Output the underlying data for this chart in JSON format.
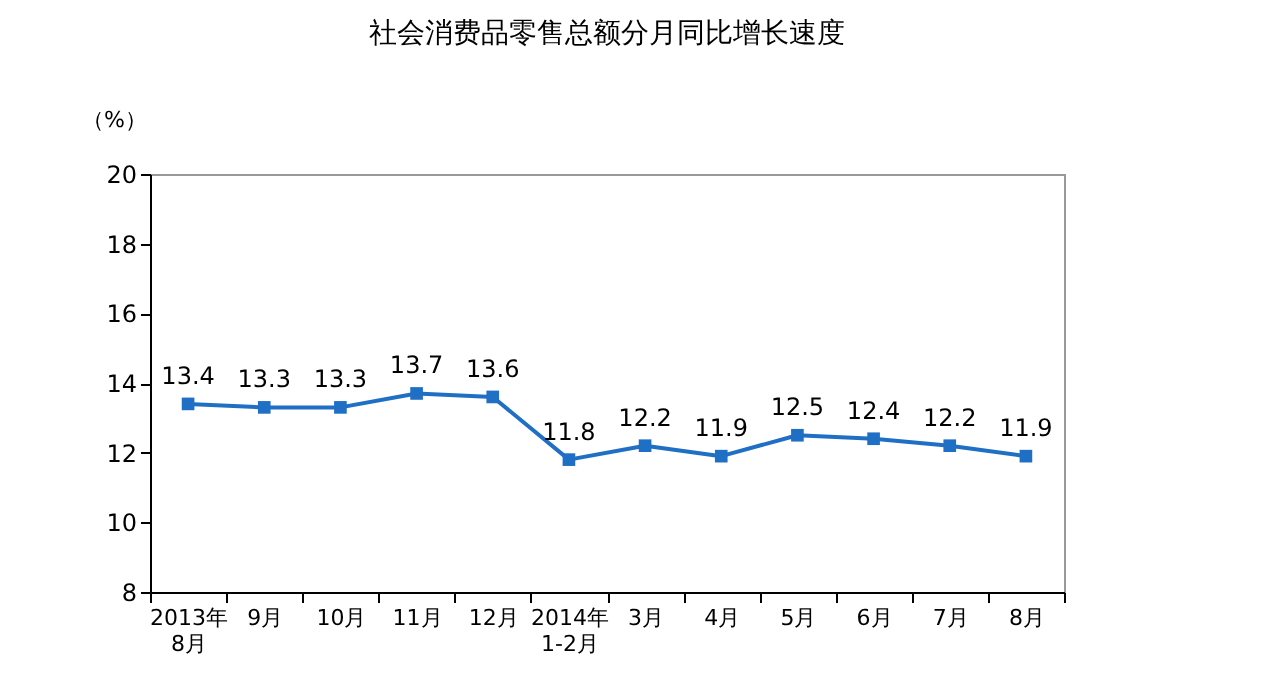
{
  "chart_data": {
    "type": "line",
    "title": "社会消费品零售总额分月同比增长速度",
    "ylabel": "（%）",
    "categories": [
      "2013年\n8月",
      "9月",
      "10月",
      "11月",
      "12月",
      "2014年\n1-2月",
      "3月",
      "4月",
      "5月",
      "6月",
      "7月",
      "8月"
    ],
    "series": [
      {
        "color": "#1f6fc5",
        "values": [
          13.4,
          13.3,
          13.3,
          13.7,
          13.6,
          11.8,
          12.2,
          11.9,
          12.5,
          12.4,
          12.2,
          11.9
        ]
      }
    ],
    "ylim": [
      8,
      20
    ],
    "yticks": [
      8,
      10,
      12,
      14,
      16,
      18,
      20
    ],
    "grid": false,
    "marker": "square",
    "line_style": "solid",
    "data_labels": true
  }
}
